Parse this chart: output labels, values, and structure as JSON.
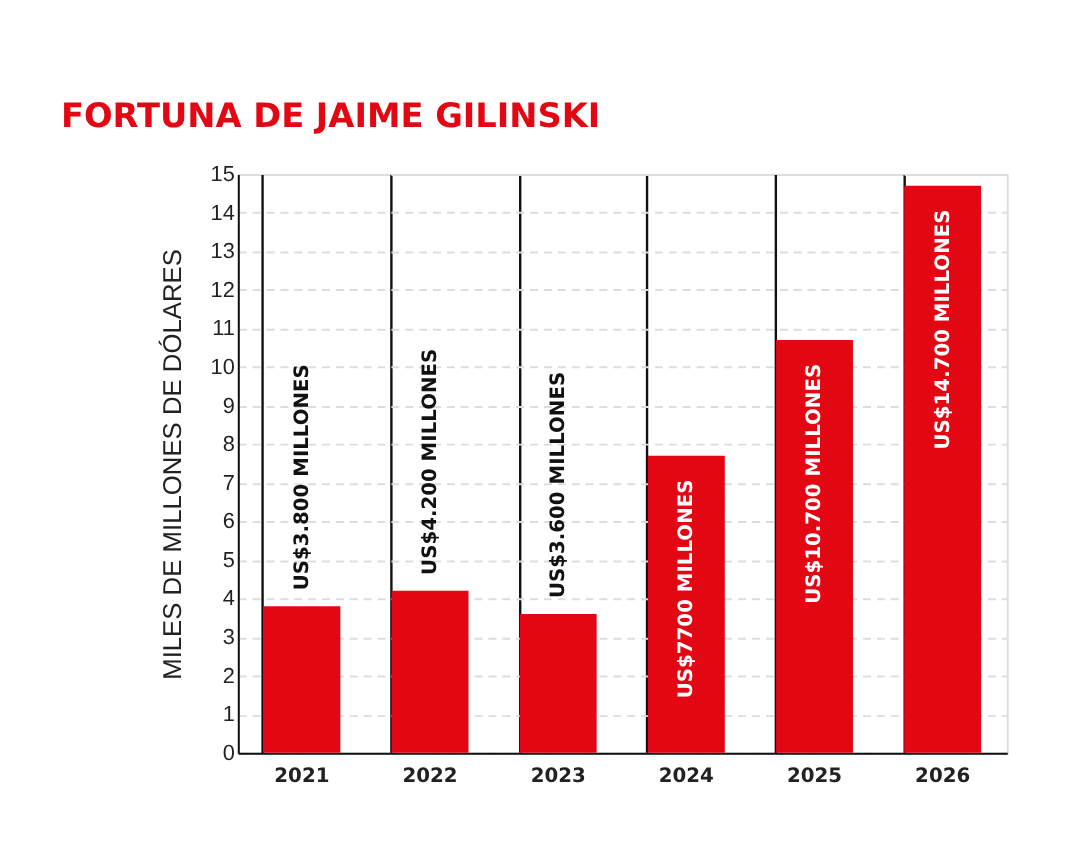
{
  "chart_data": {
    "type": "bar",
    "title": "FORTUNA DE JAIME GILINSKI",
    "ylabel": "MILES DE MILLONES DE DÓLARES",
    "categories": [
      "2021",
      "2022",
      "2023",
      "2024",
      "2025",
      "2026"
    ],
    "values": [
      3.8,
      4.2,
      3.6,
      7.7,
      10.7,
      14.7
    ],
    "value_labels": [
      "US$3.800 MILLONES",
      "US$4.200 MILLONES",
      "US$3.600 MILLONES",
      "US$7700 MILLONES",
      "US$10.700 MILLONES",
      "US$14.700 MILLONES"
    ],
    "color": "#e30613",
    "ylim": [
      0,
      15
    ],
    "yticks": [
      0,
      1,
      2,
      3,
      4,
      5,
      6,
      7,
      8,
      9,
      10,
      11,
      12,
      13,
      14,
      15
    ],
    "grid": true
  }
}
